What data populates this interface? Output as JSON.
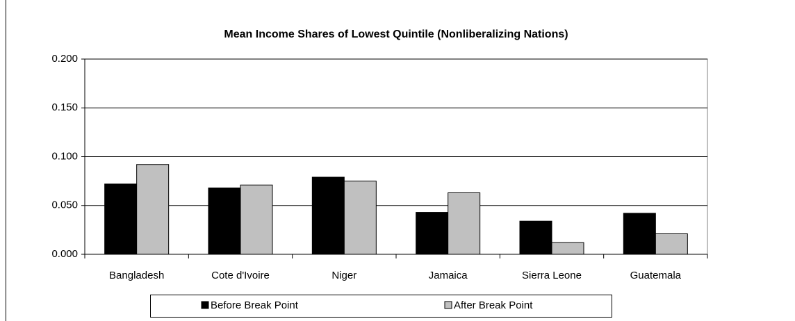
{
  "chart_data": {
    "type": "bar",
    "title": "Mean Income Shares of Lowest Quintile (Nonliberalizing Nations)",
    "categories": [
      "Bangladesh",
      "Cote d'Ivoire",
      "Niger",
      "Jamaica",
      "Sierra Leone",
      "Guatemala"
    ],
    "series": [
      {
        "name": "Before Break Point",
        "color": "#000000",
        "values": [
          0.072,
          0.068,
          0.079,
          0.043,
          0.034,
          0.042
        ]
      },
      {
        "name": "After Break Point",
        "color": "#c0c0c0",
        "values": [
          0.092,
          0.071,
          0.075,
          0.063,
          0.012,
          0.021
        ]
      }
    ],
    "ylim": [
      0,
      0.2
    ],
    "yticks": [
      {
        "value": 0,
        "label": "0.000"
      },
      {
        "value": 0.05,
        "label": "0.050"
      },
      {
        "value": 0.1,
        "label": "0.100"
      },
      {
        "value": 0.15,
        "label": "0.150"
      },
      {
        "value": 0.2,
        "label": "0.200"
      }
    ],
    "grid": true,
    "legend": "bottom"
  }
}
